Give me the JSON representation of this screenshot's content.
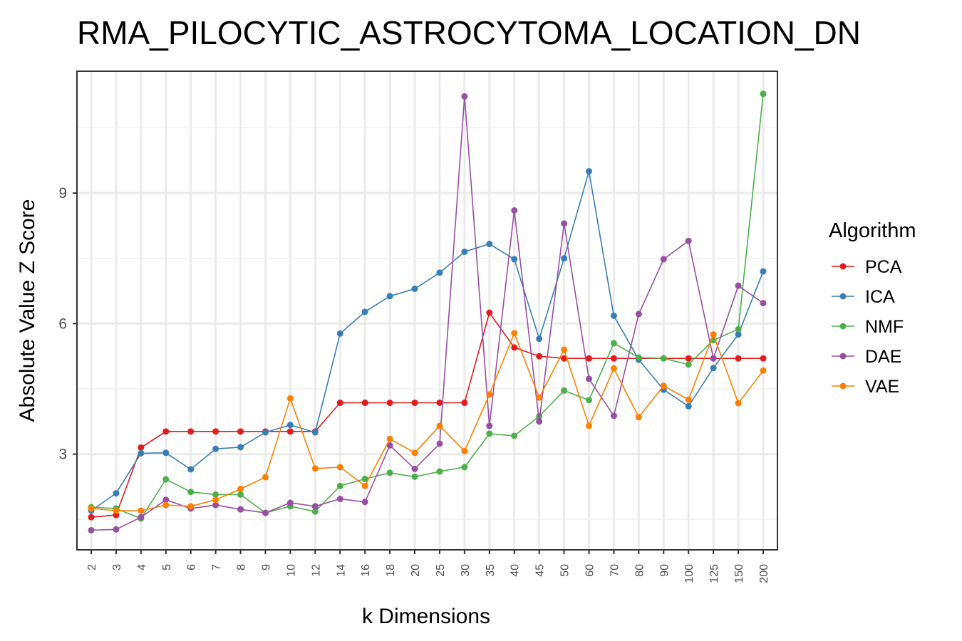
{
  "chart_data": {
    "type": "line",
    "title": "RMA_PILOCYTIC_ASTROCYTOMA_LOCATION_DN",
    "xlabel": "k Dimensions",
    "ylabel": "Absolute Value Z Score",
    "categories": [
      "2",
      "3",
      "4",
      "5",
      "6",
      "7",
      "8",
      "9",
      "10",
      "12",
      "14",
      "16",
      "18",
      "20",
      "25",
      "30",
      "35",
      "40",
      "45",
      "50",
      "60",
      "70",
      "80",
      "90",
      "100",
      "125",
      "150",
      "200"
    ],
    "yticks": [
      3,
      6,
      9
    ],
    "ylim": [
      0.8,
      11.8
    ],
    "grid": true,
    "legend": {
      "title": "Algorithm",
      "position": "right"
    },
    "series": [
      {
        "name": "PCA",
        "color": "#e41a1c",
        "values": [
          1.55,
          1.6,
          3.15,
          3.52,
          3.52,
          3.52,
          3.52,
          3.52,
          3.52,
          3.52,
          4.18,
          4.18,
          4.18,
          4.18,
          4.18,
          4.18,
          6.25,
          5.45,
          5.25,
          5.2,
          5.2,
          5.2,
          5.2,
          5.2,
          5.2,
          5.2,
          5.2,
          5.2
        ]
      },
      {
        "name": "ICA",
        "color": "#377eb8",
        "values": [
          1.7,
          2.1,
          3.02,
          3.03,
          2.65,
          3.12,
          3.16,
          3.5,
          3.67,
          3.5,
          5.77,
          6.27,
          6.63,
          6.8,
          7.17,
          7.65,
          7.83,
          7.48,
          5.65,
          7.5,
          9.5,
          6.18,
          5.17,
          4.48,
          4.1,
          4.98,
          5.75,
          7.2
        ]
      },
      {
        "name": "NMF",
        "color": "#4daf4a",
        "values": [
          1.78,
          1.75,
          1.52,
          2.42,
          2.13,
          2.07,
          2.07,
          1.65,
          1.8,
          1.68,
          2.27,
          2.43,
          2.57,
          2.48,
          2.6,
          2.7,
          3.47,
          3.42,
          3.87,
          4.46,
          4.24,
          5.55,
          5.22,
          5.2,
          5.06,
          5.62,
          5.87,
          11.28
        ]
      },
      {
        "name": "DAE",
        "color": "#984ea3",
        "values": [
          1.25,
          1.27,
          1.55,
          1.95,
          1.75,
          1.83,
          1.73,
          1.65,
          1.88,
          1.8,
          1.97,
          1.9,
          3.2,
          2.66,
          3.24,
          11.22,
          3.65,
          8.6,
          3.75,
          8.3,
          4.73,
          3.88,
          6.22,
          7.48,
          7.9,
          5.2,
          6.87,
          6.47
        ]
      },
      {
        "name": "VAE",
        "color": "#ff7f00",
        "values": [
          1.75,
          1.7,
          1.7,
          1.83,
          1.8,
          1.95,
          2.2,
          2.47,
          4.28,
          2.67,
          2.7,
          2.27,
          3.35,
          3.03,
          3.65,
          3.07,
          4.37,
          5.78,
          4.3,
          5.4,
          3.65,
          4.97,
          3.85,
          4.57,
          4.25,
          5.75,
          4.17,
          4.92
        ]
      }
    ]
  }
}
